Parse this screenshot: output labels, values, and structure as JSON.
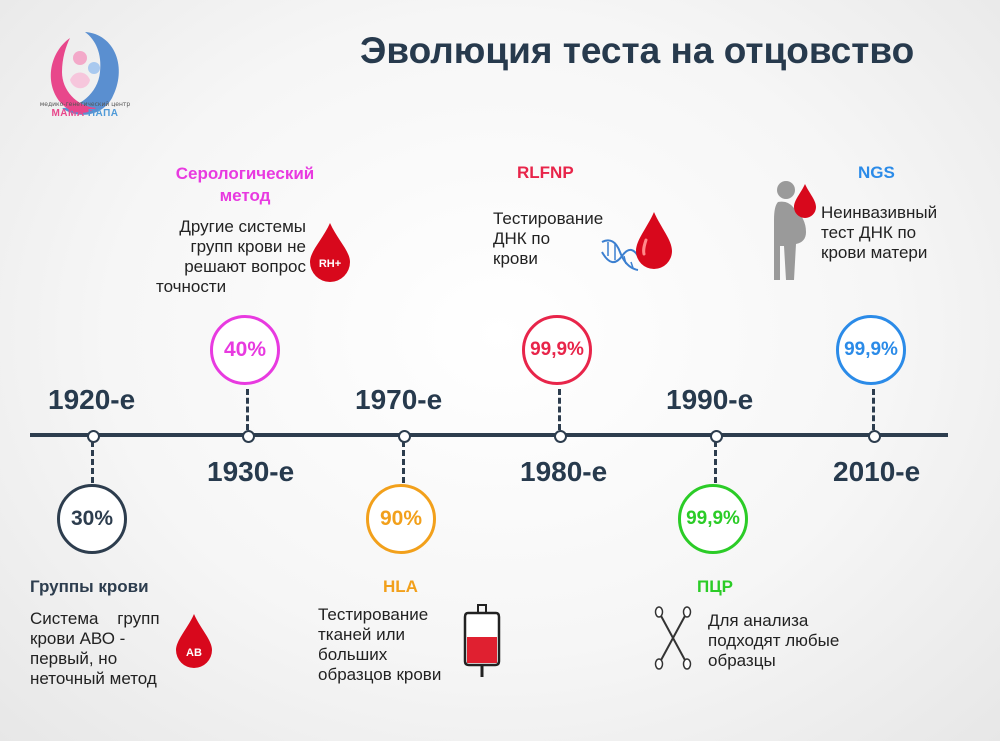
{
  "logo": {
    "subtitle": "медико-генетический центр",
    "brand_mama": "МАМА",
    "brand_papa": "ПАПА"
  },
  "title": "Эволюция теста на отцовство",
  "colors": {
    "line": "#2d3d4e",
    "blood_groups": "#2d3d4e",
    "serological": "#e83ae0",
    "hla": "#f2a01b",
    "rlfnp": "#e8254a",
    "pcr": "#2bcc27",
    "ngs": "#2b8be8",
    "blood_drop": "#d8081c"
  },
  "timeline": [
    {
      "year": "1920-е",
      "percent": "30%",
      "method": "Группы крови",
      "description": [
        "Система групп",
        "крови АВО -",
        "первый, но",
        "неточный метод"
      ],
      "icon": "blood-drop-ab-icon",
      "icon_text": "AB"
    },
    {
      "year": "1930-е",
      "percent": "40%",
      "method": [
        "Серологический",
        "метод"
      ],
      "description": [
        "Другие системы",
        "групп крови не",
        "решают вопрос",
        "точности"
      ],
      "icon": "blood-drop-rh-icon",
      "icon_text": "RH+"
    },
    {
      "year": "1970-е",
      "percent": "90%",
      "method": "HLA",
      "description": [
        "Тестирование",
        "тканей или",
        "больших",
        "образцов крови"
      ],
      "icon": "blood-bag-icon"
    },
    {
      "year": "1980-е",
      "percent": "99,9%",
      "method": "RLFNP",
      "description": [
        "Тестирование",
        "ДНК по",
        "крови"
      ],
      "icon": "dna-blood-drop-icon"
    },
    {
      "year": "1990-е",
      "percent": "99,9%",
      "method": "ПЦР",
      "description": [
        "Для анализа",
        "подходят любые",
        "образцы"
      ],
      "icon": "cotton-swab-icon"
    },
    {
      "year": "2010-е",
      "percent": "99,9%",
      "method": "NGS",
      "description": [
        "Неинвазивный",
        "тест ДНК по",
        "крови матери"
      ],
      "icon": "pregnant-woman-icon"
    }
  ]
}
